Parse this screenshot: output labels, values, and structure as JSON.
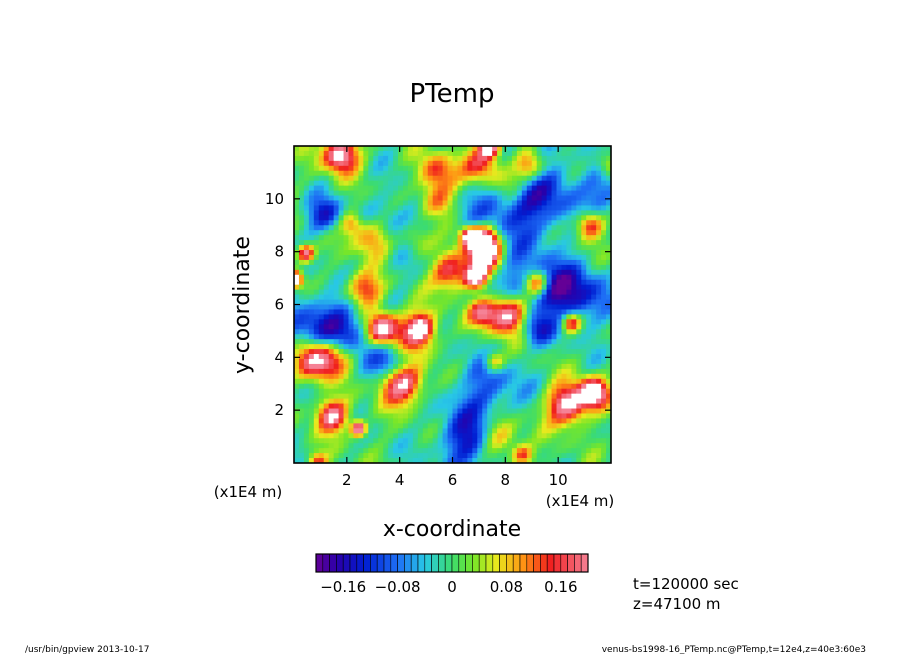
{
  "chart_data": {
    "type": "heatmap",
    "title": "PTemp",
    "xlabel": "x-coordinate",
    "ylabel": "y-coordinate",
    "x_unit_label": "(x1E4 m)",
    "y_unit_label": "(x1E4 m)",
    "xlim": [
      0,
      12
    ],
    "ylim": [
      0,
      12
    ],
    "x_ticks": [
      "2",
      "4",
      "6",
      "8",
      "10"
    ],
    "y_ticks": [
      "2",
      "4",
      "6",
      "8",
      "10"
    ],
    "colorbar": {
      "tick_labels": [
        "−0.16",
        "−0.08",
        "0",
        "0.08",
        "0.16"
      ],
      "range": [
        -0.2,
        0.2
      ]
    },
    "annotations": {
      "time": "t=120000 sec",
      "level": "z=47100 m"
    }
  },
  "footer": {
    "left": "/usr/bin/gpview   2013-10-17",
    "right": "venus-bs1998-16_PTemp.nc@PTemp,t=12e4,z=40e3:60e3"
  }
}
